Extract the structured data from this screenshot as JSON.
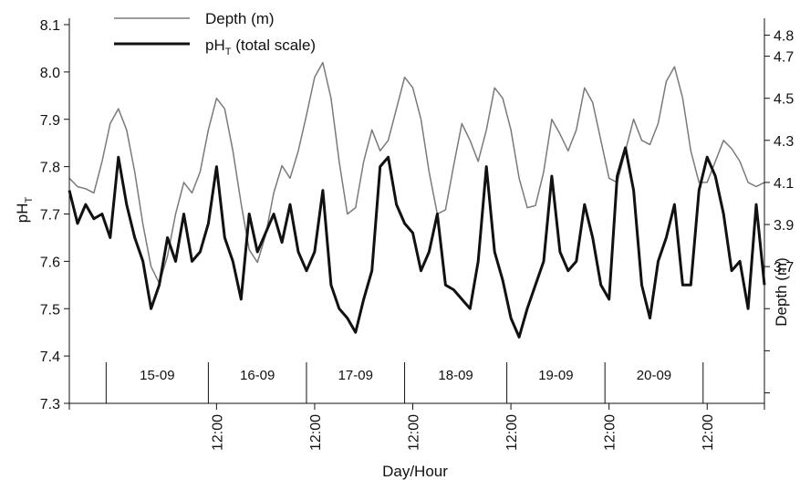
{
  "chart_data": {
    "type": "line",
    "xlabel": "Day/Hour",
    "ylabel_main": "pH",
    "ylabel_sub": "T",
    "y2label": "Depth (m)",
    "ylim": [
      7.3,
      8.1
    ],
    "y2lim": [
      3.05,
      4.85
    ],
    "y_ticks": [
      "7.3",
      "7.4",
      "7.5",
      "7.6",
      "7.7",
      "7.8",
      "7.9",
      "8.0",
      "8.1"
    ],
    "y2_ticks": [
      "3.7",
      "3.9",
      "4.1",
      "4.3",
      "4.5",
      "4.7",
      "4.8"
    ],
    "y2_tick_values": [
      3.7,
      3.9,
      4.1,
      4.3,
      4.5,
      4.7,
      4.8
    ],
    "y2_minor_ticks": [
      3.1,
      3.3,
      3.5
    ],
    "x_ticks": [
      "12:00",
      "12:00",
      "12:00",
      "12:00",
      "12:00",
      "12:00"
    ],
    "x_tick_hours": [
      36,
      60,
      84,
      108,
      132,
      156
    ],
    "xlim_hours": [
      0,
      170
    ],
    "day_boundaries_hours": [
      9,
      34,
      58,
      82,
      107,
      131,
      155
    ],
    "days": [
      "15-09",
      "16-09",
      "17-09",
      "18-09",
      "19-09",
      "20-09"
    ],
    "legend": [
      {
        "label": "Depth (m)",
        "sub": "",
        "suffix": ""
      },
      {
        "label": "pH",
        "sub": "T",
        "suffix": " (total scale)"
      }
    ],
    "legend_position": "top-left",
    "colors": {
      "depth": "#7a7a7a",
      "ph": "#111111"
    },
    "series": [
      {
        "name": "Depth (m)",
        "axis": "right",
        "x_hours": [
          0,
          2,
          4,
          6,
          8,
          10,
          12,
          14,
          16,
          18,
          20,
          22,
          24,
          26,
          28,
          30,
          32,
          34,
          36,
          38,
          40,
          42,
          44,
          46,
          48,
          50,
          52,
          54,
          56,
          58,
          60,
          62,
          64,
          66,
          68,
          70,
          72,
          74,
          76,
          78,
          80,
          82,
          84,
          86,
          88,
          90,
          92,
          94,
          96,
          98,
          100,
          102,
          104,
          106,
          108,
          110,
          112,
          114,
          116,
          118,
          120,
          122,
          124,
          126,
          128,
          130,
          132,
          134,
          136,
          138,
          140,
          142,
          144,
          146,
          148,
          150,
          152,
          154,
          156,
          158,
          160,
          162,
          164,
          166,
          168,
          170
        ],
        "values": [
          4.12,
          4.08,
          4.07,
          4.05,
          4.2,
          4.38,
          4.45,
          4.35,
          4.15,
          3.9,
          3.7,
          3.62,
          3.75,
          3.95,
          4.1,
          4.05,
          4.15,
          4.35,
          4.5,
          4.45,
          4.25,
          4.0,
          3.78,
          3.72,
          3.85,
          4.05,
          4.18,
          4.12,
          4.25,
          4.42,
          4.6,
          4.67,
          4.5,
          4.2,
          3.95,
          3.98,
          4.2,
          4.35,
          4.25,
          4.3,
          4.45,
          4.6,
          4.55,
          4.4,
          4.15,
          3.95,
          3.97,
          4.18,
          4.38,
          4.3,
          4.2,
          4.35,
          4.55,
          4.5,
          4.35,
          4.12,
          3.98,
          3.99,
          4.15,
          4.4,
          4.33,
          4.25,
          4.35,
          4.55,
          4.48,
          4.3,
          4.12,
          4.1,
          4.25,
          4.4,
          4.3,
          4.28,
          4.38,
          4.58,
          4.65,
          4.5,
          4.25,
          4.1,
          4.1,
          4.2,
          4.3,
          4.26,
          4.2,
          4.1,
          4.08,
          4.1
        ]
      },
      {
        "name": "pHT (total scale)",
        "axis": "left",
        "x_hours": [
          0,
          2,
          4,
          6,
          8,
          10,
          12,
          14,
          16,
          18,
          20,
          22,
          24,
          26,
          28,
          30,
          32,
          34,
          36,
          38,
          40,
          42,
          44,
          46,
          48,
          50,
          52,
          54,
          56,
          58,
          60,
          62,
          64,
          66,
          68,
          70,
          72,
          74,
          76,
          78,
          80,
          82,
          84,
          86,
          88,
          90,
          92,
          94,
          96,
          98,
          100,
          102,
          104,
          106,
          108,
          110,
          112,
          114,
          116,
          118,
          120,
          122,
          124,
          126,
          128,
          130,
          132,
          134,
          136,
          138,
          140,
          142,
          144,
          146,
          148,
          150,
          152,
          154,
          156,
          158,
          160,
          162,
          164,
          166,
          168,
          170
        ],
        "values": [
          7.75,
          7.68,
          7.72,
          7.69,
          7.7,
          7.65,
          7.82,
          7.72,
          7.65,
          7.6,
          7.5,
          7.55,
          7.65,
          7.6,
          7.7,
          7.6,
          7.62,
          7.68,
          7.8,
          7.65,
          7.6,
          7.52,
          7.7,
          7.62,
          7.66,
          7.7,
          7.64,
          7.72,
          7.62,
          7.58,
          7.62,
          7.75,
          7.55,
          7.5,
          7.48,
          7.45,
          7.52,
          7.58,
          7.8,
          7.82,
          7.72,
          7.68,
          7.66,
          7.58,
          7.62,
          7.7,
          7.55,
          7.54,
          7.52,
          7.5,
          7.6,
          7.8,
          7.62,
          7.56,
          7.48,
          7.44,
          7.5,
          7.55,
          7.6,
          7.78,
          7.62,
          7.58,
          7.6,
          7.72,
          7.65,
          7.55,
          7.52,
          7.78,
          7.84,
          7.75,
          7.55,
          7.48,
          7.6,
          7.65,
          7.72,
          7.55,
          7.55,
          7.75,
          7.82,
          7.78,
          7.7,
          7.58,
          7.6,
          7.5,
          7.72,
          7.55
        ]
      }
    ]
  }
}
